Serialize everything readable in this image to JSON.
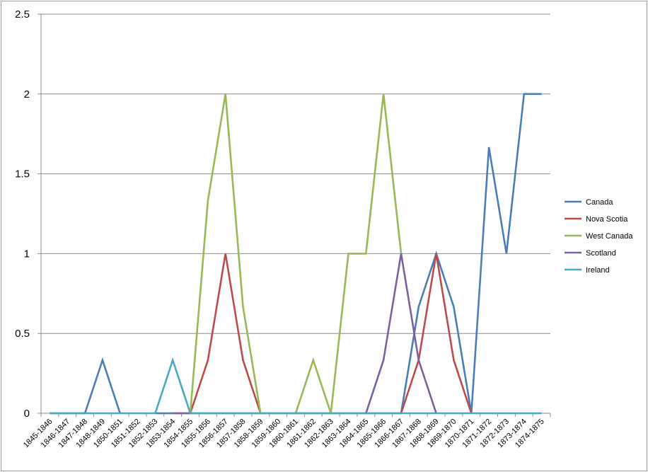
{
  "chart_data": {
    "type": "line",
    "title": "",
    "xlabel": "",
    "ylabel": "",
    "ylim": [
      0,
      2.5
    ],
    "yticks": [
      "0",
      "0.5",
      "1",
      "1.5",
      "2",
      "2.5"
    ],
    "grid": "horizontal",
    "legend_position": "right",
    "categories": [
      "1845-1846",
      "1846-1847",
      "1847-1848",
      "1848-1849",
      "1850-1851",
      "1851-1852",
      "1852-1853",
      "1853-1854",
      "1854-1855",
      "1855-1856",
      "1856-1857",
      "1857-1858",
      "1858-1859",
      "1859-1860",
      "1860-1861",
      "1861-1862",
      "1862-1863",
      "1863-1864",
      "1864-1865",
      "1865-1866",
      "1866-1867",
      "1867-1868",
      "1868-1869",
      "1869-1870",
      "1870-1871",
      "1871-1872",
      "1872-1873",
      "1873-1874",
      "1874-1875"
    ],
    "series": [
      {
        "name": "Canada",
        "color": "#4a7ebb",
        "values": [
          0,
          0,
          0,
          0.333,
          0,
          null,
          0,
          0,
          0,
          0,
          0,
          0,
          0,
          0,
          0,
          0,
          0,
          0,
          0,
          0,
          0,
          0.667,
          1,
          0.667,
          0,
          1.667,
          1,
          2,
          2
        ]
      },
      {
        "name": "Nova Scotia",
        "color": "#be4b48",
        "values": [
          null,
          null,
          null,
          null,
          null,
          null,
          null,
          null,
          0,
          0.333,
          1,
          0.333,
          0,
          null,
          null,
          null,
          null,
          null,
          null,
          null,
          0,
          0.333,
          1,
          0.333,
          0,
          null,
          null,
          null,
          null
        ]
      },
      {
        "name": "West Canada",
        "color": "#98b954",
        "values": [
          null,
          null,
          null,
          null,
          null,
          null,
          null,
          null,
          0,
          1.333,
          2,
          0.667,
          0,
          null,
          0,
          0.333,
          0,
          1,
          1,
          2,
          1,
          null,
          null,
          null,
          null,
          null,
          null,
          null,
          null
        ]
      },
      {
        "name": "Scotland",
        "color": "#7d60a0",
        "values": [
          null,
          null,
          null,
          null,
          null,
          null,
          null,
          0,
          0,
          null,
          null,
          null,
          null,
          null,
          null,
          null,
          null,
          null,
          0,
          0.333,
          1,
          0.333,
          0,
          null,
          null,
          null,
          null,
          null,
          null
        ]
      },
      {
        "name": "Ireland",
        "color": "#46aac5",
        "values": [
          0,
          0,
          0,
          0,
          0,
          0,
          0,
          0.333,
          0,
          0,
          0,
          0,
          0,
          0,
          0,
          0,
          0,
          0,
          0,
          0,
          0,
          0,
          0,
          0,
          0,
          0,
          0,
          0,
          0
        ]
      }
    ]
  }
}
